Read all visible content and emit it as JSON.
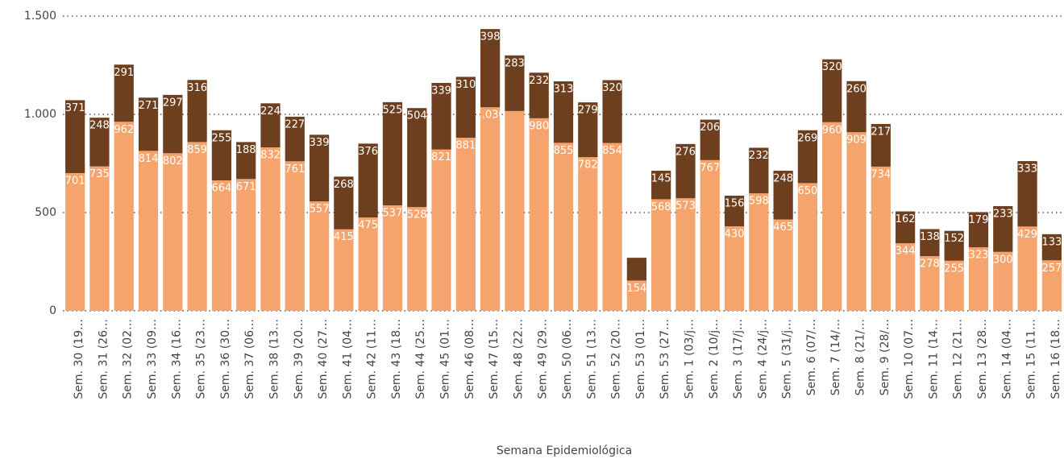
{
  "chart_data": {
    "type": "stacked_bar",
    "x_label": "Semana Epidemiológica",
    "categories": [
      "Sem. 30 (19…",
      "Sem. 31 (26…",
      "Sem. 32 (02…",
      "Sem. 33 (09…",
      "Sem. 34 (16…",
      "Sem. 35 (23…",
      "Sem. 36 (30…",
      "Sem. 37 (06…",
      "Sem. 38 (13…",
      "Sem. 39 (20…",
      "Sem. 40 (27…",
      "Sem. 41 (04…",
      "Sem. 42 (11…",
      "Sem. 43 (18…",
      "Sem. 44 (25…",
      "Sem. 45 (01…",
      "Sem. 46 (08…",
      "Sem. 47 (15…",
      "Sem. 48 (22…",
      "Sem. 49 (29…",
      "Sem. 50 (06…",
      "Sem. 51 (13…",
      "Sem. 52 (20…",
      "Sem. 53 (01…",
      "Sem. 53 (27…",
      "Sem. 1 (03/j…",
      "Sem. 2 (10/j…",
      "Sem. 3 (17/j…",
      "Sem. 4 (24/j…",
      "Sem. 5 (31/j…",
      "Sem. 6 (07/…",
      "Sem. 7 (14/…",
      "Sem. 8 (21/…",
      "Sem. 9 (28/…",
      "Sem. 10 (07…",
      "Sem. 11 (14…",
      "Sem. 12 (21…",
      "Sem. 13 (28…",
      "Sem. 14 (04…",
      "Sem. 15 (11…",
      "Sem. 16 (18…"
    ],
    "series": [
      {
        "color": "#f4a46c",
        "values": [
          701,
          735,
          962,
          814,
          802,
          859,
          664,
          671,
          832,
          761,
          557,
          415,
          475,
          537,
          528,
          821,
          881,
          1036,
          1017,
          980,
          855,
          782,
          854,
          154,
          568,
          573,
          767,
          430,
          598,
          465,
          650,
          960,
          909,
          734,
          344,
          278,
          255,
          323,
          300,
          429,
          257
        ],
        "value_labels": [
          "701",
          "735",
          "962",
          "814",
          "802",
          "859",
          "664",
          "671",
          "832",
          "761",
          "557",
          "415",
          "475",
          "537",
          "528",
          "821",
          "881",
          "1.036",
          null,
          "980",
          "855",
          "782",
          "854",
          "154",
          "568",
          "573",
          "767",
          "430",
          "598",
          "465",
          "650",
          "960",
          "909",
          "734",
          "344",
          "278",
          "255",
          "323",
          "300",
          "429",
          "257"
        ]
      },
      {
        "color": "#6e3f1e",
        "values": [
          371,
          248,
          291,
          271,
          297,
          316,
          255,
          188,
          224,
          227,
          339,
          268,
          376,
          525,
          504,
          339,
          310,
          398,
          283,
          232,
          313,
          279,
          320,
          116,
          145,
          276,
          206,
          156,
          232,
          248,
          269,
          320,
          260,
          217,
          162,
          138,
          152,
          179,
          233,
          333,
          133
        ],
        "value_labels": [
          "371",
          "248",
          "291",
          "271",
          "297",
          "316",
          "255",
          "188",
          "224",
          "227",
          "339",
          "268",
          "376",
          "525",
          "504",
          "339",
          "310",
          "398",
          "283",
          "232",
          "313",
          "279",
          "320",
          null,
          "145",
          "276",
          "206",
          "156",
          "232",
          "248",
          "269",
          "320",
          "260",
          "217",
          "162",
          "138",
          "152",
          "179",
          "233",
          "333",
          "133"
        ]
      }
    ],
    "ylim": [
      0,
      1500
    ],
    "yticks": [
      0,
      500,
      {
        "value": 1000,
        "label": "1.000"
      },
      {
        "value": 1500,
        "label": "1.500"
      }
    ],
    "grid": true
  }
}
